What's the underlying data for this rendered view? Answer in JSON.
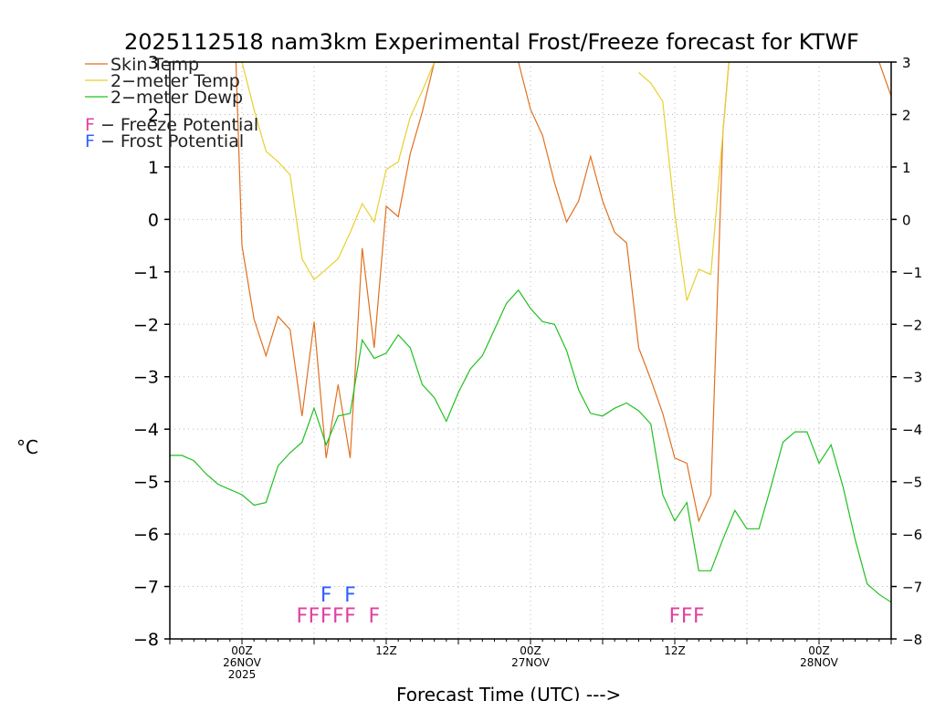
{
  "chart_data": {
    "type": "line",
    "title": "2025112518 nam3km Experimental Frost/Freeze forecast for KTWF",
    "xlabel": "Forecast Time (UTC) --->",
    "ylabel": "°C",
    "ylim": [
      -8,
      3
    ],
    "y_ticks": [
      -8,
      -7,
      -6,
      -5,
      -4,
      -3,
      -2,
      -1,
      0,
      1,
      2,
      3
    ],
    "y_tick_labels_left": [
      "−8",
      "−7",
      "−6",
      "−5",
      "−4",
      "−3",
      "−2",
      "−1",
      "0",
      "1",
      "2",
      "3"
    ],
    "y_tick_labels_right": [
      "−8",
      "−7",
      "−6",
      "−5",
      "−4",
      "−3",
      "−2",
      "−1",
      "0",
      "1",
      "2",
      "3"
    ],
    "x_range_hours": [
      -6,
      54
    ],
    "x_gridlines_hours": [
      0,
      6,
      12,
      18,
      24,
      30,
      36,
      42,
      48
    ],
    "x_ticks": [
      {
        "hour": 0,
        "lines": [
          "00Z",
          "26NOV",
          "2025"
        ]
      },
      {
        "hour": 12,
        "lines": [
          "12Z"
        ]
      },
      {
        "hour": 24,
        "lines": [
          "00Z",
          "27NOV"
        ]
      },
      {
        "hour": 36,
        "lines": [
          "12Z"
        ]
      },
      {
        "hour": 48,
        "lines": [
          "00Z",
          "28NOV"
        ]
      }
    ],
    "grid": true,
    "colors": {
      "skin": "#e07020",
      "temp": "#e8d030",
      "dewp": "#20c020",
      "freeze": "#e040a0",
      "frost": "#3060ff"
    },
    "series": [
      {
        "name": "Skin Temp",
        "x": [
          -0.5,
          0,
          1,
          2,
          3,
          4,
          5,
          6,
          7,
          8,
          9,
          10,
          11,
          12,
          13,
          14,
          15,
          16,
          17
        ],
        "values": [
          3,
          -0.5,
          -1.9,
          -2.6,
          -1.85,
          -2.1,
          -3.75,
          -1.95,
          -4.55,
          -3.15,
          -4.55,
          -0.55,
          -2.45,
          0.25,
          0.05,
          1.25,
          2.05,
          3,
          3
        ]
      },
      {
        "name": "Skin Temp",
        "x": [
          23,
          24,
          25,
          26,
          27,
          28,
          29,
          30,
          31,
          32,
          33,
          34,
          35,
          36,
          37,
          38,
          39,
          40,
          40.5
        ],
        "values": [
          3,
          2.1,
          1.6,
          0.7,
          -0.05,
          0.35,
          1.2,
          0.35,
          -0.25,
          -0.45,
          -2.45,
          -3.05,
          -3.7,
          -4.55,
          -4.65,
          -5.75,
          -5.25,
          1.65,
          3
        ]
      },
      {
        "name": "Skin Temp",
        "x": [
          53,
          54
        ],
        "values": [
          3,
          2.35
        ]
      },
      {
        "name": "2-meter Temp",
        "x": [
          -0.5,
          0,
          1,
          2,
          3,
          4,
          5,
          6,
          7,
          8,
          9,
          10,
          11,
          12,
          13,
          14,
          15,
          16,
          17
        ],
        "values": [
          3,
          3,
          2.1,
          1.3,
          1.1,
          0.85,
          -0.75,
          -1.15,
          -0.95,
          -0.75,
          -0.25,
          0.3,
          -0.05,
          0.95,
          1.1,
          1.95,
          2.45,
          3,
          3
        ]
      },
      {
        "name": "2-meter Temp",
        "x": [
          33,
          34,
          35,
          36,
          37,
          38,
          39,
          40,
          40.5
        ],
        "values": [
          2.8,
          2.6,
          2.25,
          0.1,
          -1.55,
          -0.95,
          -1.05,
          1.65,
          3
        ]
      },
      {
        "name": "2-meter Dewp",
        "x": [
          -6,
          -5,
          -4,
          -3,
          -2,
          -1,
          0,
          1,
          2,
          3,
          4,
          5,
          6,
          7,
          8,
          9,
          10,
          11,
          12,
          13,
          14,
          15,
          16,
          17,
          18,
          19,
          20,
          21,
          22,
          23,
          24,
          25,
          26,
          27,
          28,
          29,
          30,
          31,
          32,
          33,
          34,
          35,
          36,
          37,
          38,
          39,
          40,
          41,
          42,
          43,
          44,
          45,
          46,
          47,
          48,
          49,
          50,
          51,
          52,
          53,
          54
        ],
        "values": [
          -4.5,
          -4.5,
          -4.6,
          -4.85,
          -5.05,
          -5.15,
          -5.25,
          -5.45,
          -5.4,
          -4.7,
          -4.45,
          -4.25,
          -3.6,
          -4.3,
          -3.75,
          -3.7,
          -2.3,
          -2.65,
          -2.55,
          -2.2,
          -2.45,
          -3.15,
          -3.4,
          -3.85,
          -3.3,
          -2.85,
          -2.6,
          -2.1,
          -1.6,
          -1.35,
          -1.7,
          -1.95,
          -2.0,
          -2.5,
          -3.25,
          -3.7,
          -3.75,
          -3.6,
          -3.5,
          -3.65,
          -3.9,
          -5.25,
          -5.75,
          -5.4,
          -6.7,
          -6.7,
          -6.1,
          -5.55,
          -5.9,
          -5.9,
          -5.1,
          -4.25,
          -4.05,
          -4.05,
          -4.65,
          -4.3,
          -5.1,
          -6.1,
          -6.95,
          -7.15,
          -7.3
        ]
      }
    ],
    "legend": [
      {
        "label": "Skin Temp",
        "color": "#e07020"
      },
      {
        "label": "2−meter Temp",
        "color": "#e8d030"
      },
      {
        "label": "2−meter Dewp",
        "color": "#20c020"
      }
    ],
    "annotation_legend": [
      {
        "letter": "F",
        "text": " − Freeze Potential",
        "color": "#e040a0"
      },
      {
        "letter": "F",
        "text": " − Frost Potential",
        "color": "#3060ff"
      }
    ],
    "freeze_marks": {
      "symbol": "F",
      "y": -7.55,
      "hours": [
        5,
        6,
        7,
        8,
        9,
        11,
        36,
        37,
        38
      ]
    },
    "frost_marks": {
      "symbol": "F",
      "y": -7.15,
      "hours": [
        7,
        9
      ]
    }
  }
}
